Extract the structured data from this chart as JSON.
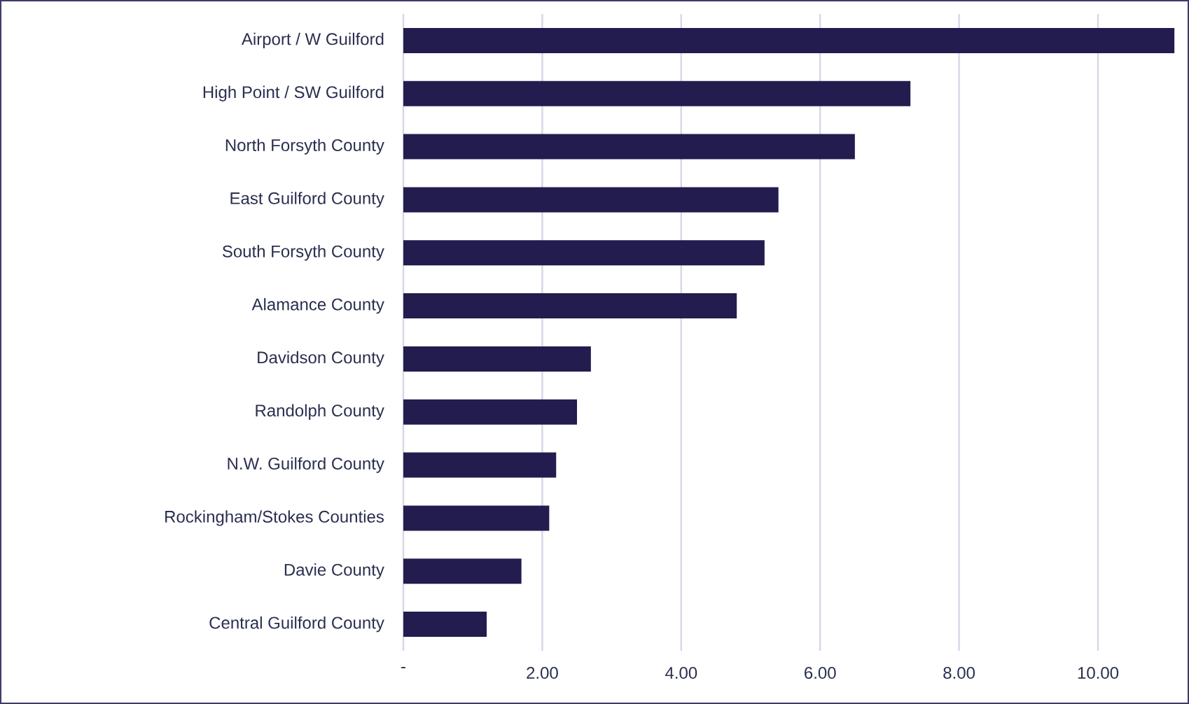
{
  "chart_data": {
    "type": "bar",
    "orientation": "horizontal",
    "categories": [
      "Airport / W Guilford",
      "High Point / SW Guilford",
      "North Forsyth County",
      "East Guilford County",
      "South Forsyth County",
      "Alamance County",
      "Davidson County",
      "Randolph County",
      "N.W. Guilford County",
      "Rockingham/Stokes Counties",
      "Davie County",
      "Central Guilford County"
    ],
    "values": [
      11.1,
      7.3,
      6.5,
      5.4,
      5.2,
      4.8,
      2.7,
      2.5,
      2.2,
      2.1,
      1.7,
      1.2
    ],
    "color": "#231c4e",
    "xlim": [
      0,
      11.3
    ],
    "xticks": [
      {
        "value": 0,
        "label": "-"
      },
      {
        "value": 2,
        "label": "2.00"
      },
      {
        "value": 4,
        "label": "4.00"
      },
      {
        "value": 6,
        "label": "6.00"
      },
      {
        "value": 8,
        "label": "8.00"
      },
      {
        "value": 10,
        "label": "10.00"
      }
    ],
    "grid": "x"
  }
}
